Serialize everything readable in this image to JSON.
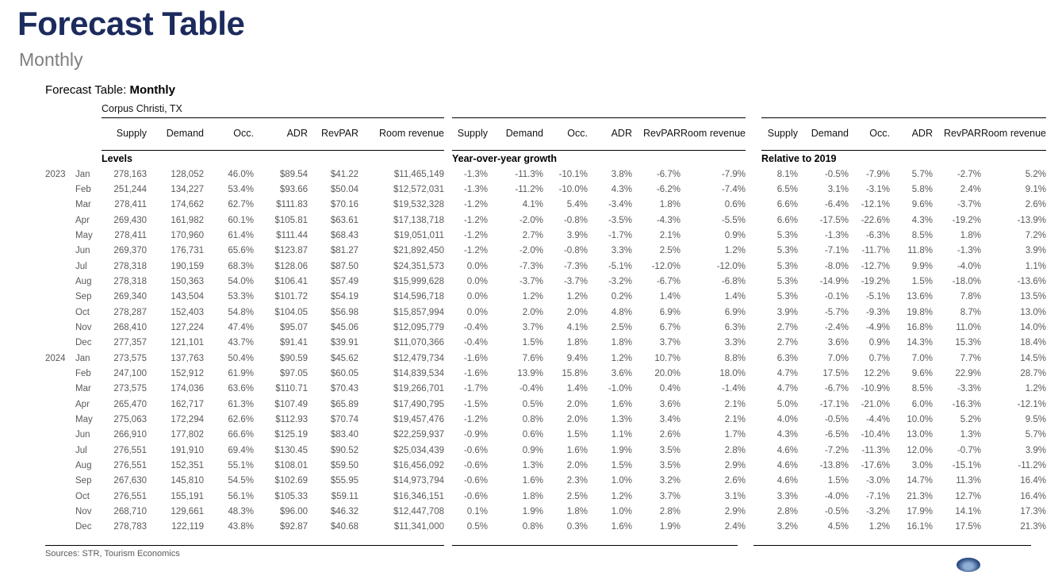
{
  "page": {
    "title": "Forecast Table",
    "subtitle": "Monthly",
    "report_label": {
      "prefix": "Forecast Table: ",
      "emphasis": "Monthly"
    },
    "market": "Corpus Christi, TX",
    "sources": "Sources: STR, Tourism Economics"
  },
  "colors": {
    "title_navy": "#1c2b5d",
    "subtitle_gray": "#7f7f7f",
    "data_gray": "#595959",
    "rule_black": "#000000",
    "logo_blue": "#2c4a80"
  },
  "table": {
    "column_headers": [
      "Supply",
      "Demand",
      "Occ.",
      "ADR",
      "RevPAR",
      "Room\nrevenue"
    ],
    "sections": [
      {
        "key": "levels",
        "label": "Levels"
      },
      {
        "key": "yoy",
        "label": "Year-over-year growth"
      },
      {
        "key": "rel2019",
        "label": "Relative to 2019"
      }
    ],
    "rows": [
      {
        "year": "2023",
        "month": "Jan",
        "levels": [
          "278,163",
          "128,052",
          "46.0%",
          "$89.54",
          "$41.22",
          "$11,465,149"
        ],
        "yoy": [
          "-1.3%",
          "-11.3%",
          "-10.1%",
          "3.8%",
          "-6.7%",
          "-7.9%"
        ],
        "rel2019": [
          "8.1%",
          "-0.5%",
          "-7.9%",
          "5.7%",
          "-2.7%",
          "5.2%"
        ]
      },
      {
        "year": "",
        "month": "Feb",
        "levels": [
          "251,244",
          "134,227",
          "53.4%",
          "$93.66",
          "$50.04",
          "$12,572,031"
        ],
        "yoy": [
          "-1.3%",
          "-11.2%",
          "-10.0%",
          "4.3%",
          "-6.2%",
          "-7.4%"
        ],
        "rel2019": [
          "6.5%",
          "3.1%",
          "-3.1%",
          "5.8%",
          "2.4%",
          "9.1%"
        ]
      },
      {
        "year": "",
        "month": "Mar",
        "levels": [
          "278,411",
          "174,662",
          "62.7%",
          "$111.83",
          "$70.16",
          "$19,532,328"
        ],
        "yoy": [
          "-1.2%",
          "4.1%",
          "5.4%",
          "-3.4%",
          "1.8%",
          "0.6%"
        ],
        "rel2019": [
          "6.6%",
          "-6.4%",
          "-12.1%",
          "9.6%",
          "-3.7%",
          "2.6%"
        ]
      },
      {
        "year": "",
        "month": "Apr",
        "levels": [
          "269,430",
          "161,982",
          "60.1%",
          "$105.81",
          "$63.61",
          "$17,138,718"
        ],
        "yoy": [
          "-1.2%",
          "-2.0%",
          "-0.8%",
          "-3.5%",
          "-4.3%",
          "-5.5%"
        ],
        "rel2019": [
          "6.6%",
          "-17.5%",
          "-22.6%",
          "4.3%",
          "-19.2%",
          "-13.9%"
        ]
      },
      {
        "year": "",
        "month": "May",
        "levels": [
          "278,411",
          "170,960",
          "61.4%",
          "$111.44",
          "$68.43",
          "$19,051,011"
        ],
        "yoy": [
          "-1.2%",
          "2.7%",
          "3.9%",
          "-1.7%",
          "2.1%",
          "0.9%"
        ],
        "rel2019": [
          "5.3%",
          "-1.3%",
          "-6.3%",
          "8.5%",
          "1.8%",
          "7.2%"
        ]
      },
      {
        "year": "",
        "month": "Jun",
        "levels": [
          "269,370",
          "176,731",
          "65.6%",
          "$123.87",
          "$81.27",
          "$21,892,450"
        ],
        "yoy": [
          "-1.2%",
          "-2.0%",
          "-0.8%",
          "3.3%",
          "2.5%",
          "1.2%"
        ],
        "rel2019": [
          "5.3%",
          "-7.1%",
          "-11.7%",
          "11.8%",
          "-1.3%",
          "3.9%"
        ]
      },
      {
        "year": "",
        "month": "Jul",
        "levels": [
          "278,318",
          "190,159",
          "68.3%",
          "$128.06",
          "$87.50",
          "$24,351,573"
        ],
        "yoy": [
          "0.0%",
          "-7.3%",
          "-7.3%",
          "-5.1%",
          "-12.0%",
          "-12.0%"
        ],
        "rel2019": [
          "5.3%",
          "-8.0%",
          "-12.7%",
          "9.9%",
          "-4.0%",
          "1.1%"
        ]
      },
      {
        "year": "",
        "month": "Aug",
        "levels": [
          "278,318",
          "150,363",
          "54.0%",
          "$106.41",
          "$57.49",
          "$15,999,628"
        ],
        "yoy": [
          "0.0%",
          "-3.7%",
          "-3.7%",
          "-3.2%",
          "-6.7%",
          "-6.8%"
        ],
        "rel2019": [
          "5.3%",
          "-14.9%",
          "-19.2%",
          "1.5%",
          "-18.0%",
          "-13.6%"
        ]
      },
      {
        "year": "",
        "month": "Sep",
        "levels": [
          "269,340",
          "143,504",
          "53.3%",
          "$101.72",
          "$54.19",
          "$14,596,718"
        ],
        "yoy": [
          "0.0%",
          "1.2%",
          "1.2%",
          "0.2%",
          "1.4%",
          "1.4%"
        ],
        "rel2019": [
          "5.3%",
          "-0.1%",
          "-5.1%",
          "13.6%",
          "7.8%",
          "13.5%"
        ]
      },
      {
        "year": "",
        "month": "Oct",
        "levels": [
          "278,287",
          "152,403",
          "54.8%",
          "$104.05",
          "$56.98",
          "$15,857,994"
        ],
        "yoy": [
          "0.0%",
          "2.0%",
          "2.0%",
          "4.8%",
          "6.9%",
          "6.9%"
        ],
        "rel2019": [
          "3.9%",
          "-5.7%",
          "-9.3%",
          "19.8%",
          "8.7%",
          "13.0%"
        ]
      },
      {
        "year": "",
        "month": "Nov",
        "levels": [
          "268,410",
          "127,224",
          "47.4%",
          "$95.07",
          "$45.06",
          "$12,095,779"
        ],
        "yoy": [
          "-0.4%",
          "3.7%",
          "4.1%",
          "2.5%",
          "6.7%",
          "6.3%"
        ],
        "rel2019": [
          "2.7%",
          "-2.4%",
          "-4.9%",
          "16.8%",
          "11.0%",
          "14.0%"
        ]
      },
      {
        "year": "",
        "month": "Dec",
        "levels": [
          "277,357",
          "121,101",
          "43.7%",
          "$91.41",
          "$39.91",
          "$11,070,366"
        ],
        "yoy": [
          "-0.4%",
          "1.5%",
          "1.8%",
          "1.8%",
          "3.7%",
          "3.3%"
        ],
        "rel2019": [
          "2.7%",
          "3.6%",
          "0.9%",
          "14.3%",
          "15.3%",
          "18.4%"
        ]
      },
      {
        "year": "2024",
        "month": "Jan",
        "levels": [
          "273,575",
          "137,763",
          "50.4%",
          "$90.59",
          "$45.62",
          "$12,479,734"
        ],
        "yoy": [
          "-1.6%",
          "7.6%",
          "9.4%",
          "1.2%",
          "10.7%",
          "8.8%"
        ],
        "rel2019": [
          "6.3%",
          "7.0%",
          "0.7%",
          "7.0%",
          "7.7%",
          "14.5%"
        ]
      },
      {
        "year": "",
        "month": "Feb",
        "levels": [
          "247,100",
          "152,912",
          "61.9%",
          "$97.05",
          "$60.05",
          "$14,839,534"
        ],
        "yoy": [
          "-1.6%",
          "13.9%",
          "15.8%",
          "3.6%",
          "20.0%",
          "18.0%"
        ],
        "rel2019": [
          "4.7%",
          "17.5%",
          "12.2%",
          "9.6%",
          "22.9%",
          "28.7%"
        ]
      },
      {
        "year": "",
        "month": "Mar",
        "levels": [
          "273,575",
          "174,036",
          "63.6%",
          "$110.71",
          "$70.43",
          "$19,266,701"
        ],
        "yoy": [
          "-1.7%",
          "-0.4%",
          "1.4%",
          "-1.0%",
          "0.4%",
          "-1.4%"
        ],
        "rel2019": [
          "4.7%",
          "-6.7%",
          "-10.9%",
          "8.5%",
          "-3.3%",
          "1.2%"
        ]
      },
      {
        "year": "",
        "month": "Apr",
        "levels": [
          "265,470",
          "162,717",
          "61.3%",
          "$107.49",
          "$65.89",
          "$17,490,795"
        ],
        "yoy": [
          "-1.5%",
          "0.5%",
          "2.0%",
          "1.6%",
          "3.6%",
          "2.1%"
        ],
        "rel2019": [
          "5.0%",
          "-17.1%",
          "-21.0%",
          "6.0%",
          "-16.3%",
          "-12.1%"
        ]
      },
      {
        "year": "",
        "month": "May",
        "levels": [
          "275,063",
          "172,294",
          "62.6%",
          "$112.93",
          "$70.74",
          "$19,457,476"
        ],
        "yoy": [
          "-1.2%",
          "0.8%",
          "2.0%",
          "1.3%",
          "3.4%",
          "2.1%"
        ],
        "rel2019": [
          "4.0%",
          "-0.5%",
          "-4.4%",
          "10.0%",
          "5.2%",
          "9.5%"
        ]
      },
      {
        "year": "",
        "month": "Jun",
        "levels": [
          "266,910",
          "177,802",
          "66.6%",
          "$125.19",
          "$83.40",
          "$22,259,937"
        ],
        "yoy": [
          "-0.9%",
          "0.6%",
          "1.5%",
          "1.1%",
          "2.6%",
          "1.7%"
        ],
        "rel2019": [
          "4.3%",
          "-6.5%",
          "-10.4%",
          "13.0%",
          "1.3%",
          "5.7%"
        ]
      },
      {
        "year": "",
        "month": "Jul",
        "levels": [
          "276,551",
          "191,910",
          "69.4%",
          "$130.45",
          "$90.52",
          "$25,034,439"
        ],
        "yoy": [
          "-0.6%",
          "0.9%",
          "1.6%",
          "1.9%",
          "3.5%",
          "2.8%"
        ],
        "rel2019": [
          "4.6%",
          "-7.2%",
          "-11.3%",
          "12.0%",
          "-0.7%",
          "3.9%"
        ]
      },
      {
        "year": "",
        "month": "Aug",
        "levels": [
          "276,551",
          "152,351",
          "55.1%",
          "$108.01",
          "$59.50",
          "$16,456,092"
        ],
        "yoy": [
          "-0.6%",
          "1.3%",
          "2.0%",
          "1.5%",
          "3.5%",
          "2.9%"
        ],
        "rel2019": [
          "4.6%",
          "-13.8%",
          "-17.6%",
          "3.0%",
          "-15.1%",
          "-11.2%"
        ]
      },
      {
        "year": "",
        "month": "Sep",
        "levels": [
          "267,630",
          "145,810",
          "54.5%",
          "$102.69",
          "$55.95",
          "$14,973,794"
        ],
        "yoy": [
          "-0.6%",
          "1.6%",
          "2.3%",
          "1.0%",
          "3.2%",
          "2.6%"
        ],
        "rel2019": [
          "4.6%",
          "1.5%",
          "-3.0%",
          "14.7%",
          "11.3%",
          "16.4%"
        ]
      },
      {
        "year": "",
        "month": "Oct",
        "levels": [
          "276,551",
          "155,191",
          "56.1%",
          "$105.33",
          "$59.11",
          "$16,346,151"
        ],
        "yoy": [
          "-0.6%",
          "1.8%",
          "2.5%",
          "1.2%",
          "3.7%",
          "3.1%"
        ],
        "rel2019": [
          "3.3%",
          "-4.0%",
          "-7.1%",
          "21.3%",
          "12.7%",
          "16.4%"
        ]
      },
      {
        "year": "",
        "month": "Nov",
        "levels": [
          "268,710",
          "129,661",
          "48.3%",
          "$96.00",
          "$46.32",
          "$12,447,708"
        ],
        "yoy": [
          "0.1%",
          "1.9%",
          "1.8%",
          "1.0%",
          "2.8%",
          "2.9%"
        ],
        "rel2019": [
          "2.8%",
          "-0.5%",
          "-3.2%",
          "17.9%",
          "14.1%",
          "17.3%"
        ]
      },
      {
        "year": "",
        "month": "Dec",
        "levels": [
          "278,783",
          "122,119",
          "43.8%",
          "$92.87",
          "$40.68",
          "$11,341,000"
        ],
        "yoy": [
          "0.5%",
          "0.8%",
          "0.3%",
          "1.6%",
          "1.9%",
          "2.4%"
        ],
        "rel2019": [
          "3.2%",
          "4.5%",
          "1.2%",
          "16.1%",
          "17.5%",
          "21.3%"
        ]
      }
    ]
  }
}
